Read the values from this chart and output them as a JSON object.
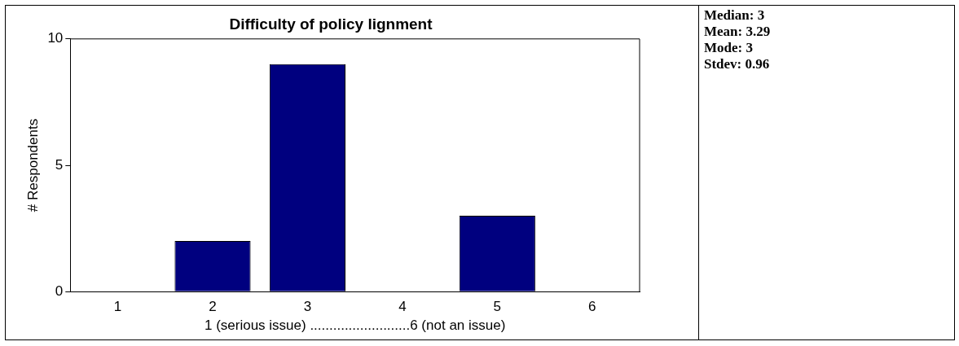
{
  "chart_data": {
    "type": "bar",
    "title": "Difficulty of policy lignment",
    "xlabel": "1 (serious issue) ..........................6 (not an issue)",
    "ylabel": "# Respondents",
    "categories": [
      "1",
      "2",
      "3",
      "4",
      "5",
      "6"
    ],
    "values": [
      0,
      2,
      9,
      0,
      3,
      0
    ],
    "color": "#00007f",
    "ylim": [
      0,
      10
    ],
    "yticks": [
      0,
      5,
      10
    ],
    "grid": false,
    "legend": false,
    "annotations": [
      "Median: 3",
      "Mean: 3.29",
      "Mode: 3",
      "Stdev: 0.96"
    ]
  }
}
